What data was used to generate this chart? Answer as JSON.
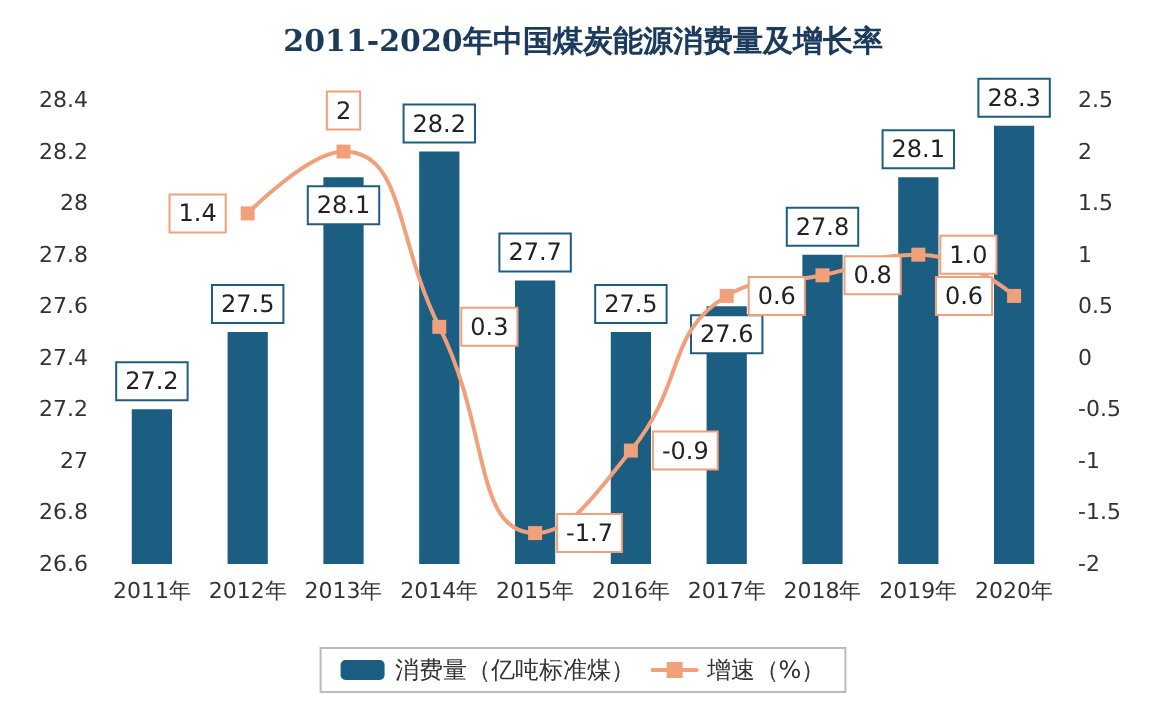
{
  "chart_data": {
    "type": "bar",
    "title": "2011-2020年中国煤炭能源消费量及增长率",
    "categories": [
      "2011年",
      "2012年",
      "2013年",
      "2014年",
      "2015年",
      "2016年",
      "2017年",
      "2018年",
      "2019年",
      "2020年"
    ],
    "series": [
      {
        "name": "消费量（亿吨标准煤）",
        "color": "#1b5e82",
        "values": [
          27.2,
          27.5,
          28.1,
          28.2,
          27.7,
          27.5,
          27.6,
          27.8,
          28.1,
          28.3
        ],
        "value_labels": [
          "27.2",
          "27.5",
          "28.1",
          "28.2",
          "27.7",
          "27.5",
          "27.6",
          "27.8",
          "28.1",
          "28.3"
        ]
      },
      {
        "name": "增速（%）",
        "type": "line",
        "axis": "y2",
        "marker": "square",
        "color": "#f0a07a",
        "values": [
          null,
          1.4,
          2,
          0.3,
          -1.7,
          -0.9,
          0.6,
          0.8,
          1.0,
          0.6
        ],
        "value_labels": [
          null,
          "1.4",
          "2",
          "0.3",
          "-1.7",
          "-0.9",
          "0.6",
          "0.8",
          "1.0",
          "0.6"
        ]
      }
    ],
    "ylim": [
      26.6,
      28.4
    ],
    "yticks": [
      26.6,
      26.8,
      27,
      27.2,
      27.4,
      27.6,
      27.8,
      28,
      28.2,
      28.4
    ],
    "y2lim": [
      -2,
      2.5
    ],
    "y2ticks": [
      -2,
      -1.5,
      -1,
      -0.5,
      0,
      0.5,
      1,
      1.5,
      2,
      2.5
    ],
    "legend": "bottom",
    "grid": false
  }
}
